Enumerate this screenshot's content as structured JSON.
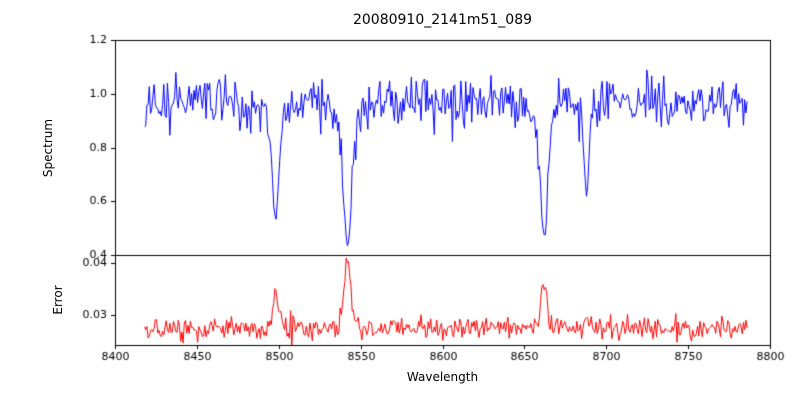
{
  "figure": {
    "title": "20080910_2141m51_089",
    "xlabel": "Wavelength",
    "background": "#ffffff",
    "frame_color": "#000000"
  },
  "x_axis": {
    "lim": [
      8400,
      8800
    ],
    "ticks": [
      8400,
      8450,
      8500,
      8550,
      8600,
      8650,
      8700,
      8750,
      8800
    ],
    "tick_labels": [
      "8400",
      "8450",
      "8500",
      "8550",
      "8600",
      "8650",
      "8700",
      "8750",
      "8800"
    ]
  },
  "chart_data": [
    {
      "type": "line",
      "panel": "spectrum",
      "ylabel": "Spectrum",
      "color": "#0000ff",
      "ylim": [
        0.4,
        1.2
      ],
      "yticks": [
        0.4,
        0.6,
        0.8,
        1.0,
        1.2
      ],
      "ytick_labels": [
        "0.4",
        "0.6",
        "0.8",
        "1.0",
        "1.2"
      ],
      "x_start": 8418,
      "x_end": 8786,
      "num_points": 500,
      "baseline": 0.97,
      "noise_sigma": 0.045,
      "seed": 20080910,
      "absorption_lines": [
        {
          "center": 8498,
          "core_depth": 0.36,
          "core_sigma": 1.8,
          "wing_depth": 0.1,
          "wing_sigma": 5.0
        },
        {
          "center": 8542,
          "core_depth": 0.42,
          "core_sigma": 2.2,
          "wing_depth": 0.13,
          "wing_sigma": 7.0
        },
        {
          "center": 8662,
          "core_depth": 0.4,
          "core_sigma": 2.0,
          "wing_depth": 0.115,
          "wing_sigma": 6.0
        },
        {
          "center": 8688,
          "core_depth": 0.32,
          "core_sigma": 1.4,
          "wing_depth": 0.04,
          "wing_sigma": 3.0
        }
      ]
    },
    {
      "type": "line",
      "panel": "error",
      "ylabel": "Error",
      "color": "#ff0000",
      "ylim": [
        0.0243,
        0.0415
      ],
      "yticks": [
        0.03,
        0.04
      ],
      "ytick_labels": [
        "0.03",
        "0.04"
      ],
      "x_start": 8418,
      "x_end": 8786,
      "num_points": 500,
      "baseline": 0.0275,
      "noise_sigma": 0.0011,
      "seed": 51089,
      "peaks": [
        {
          "center": 8498,
          "height": 0.007,
          "sigma": 1.6
        },
        {
          "center": 8542,
          "height": 0.0128,
          "sigma": 2.1
        },
        {
          "center": 8662,
          "height": 0.0088,
          "sigma": 1.8
        },
        {
          "center": 8688,
          "height": 0.003,
          "sigma": 1.2
        }
      ]
    }
  ]
}
